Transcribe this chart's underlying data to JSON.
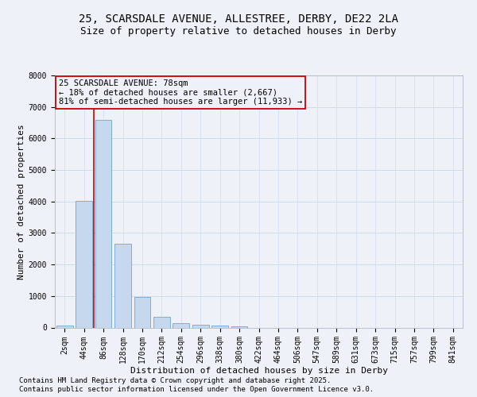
{
  "title_line1": "25, SCARSDALE AVENUE, ALLESTREE, DERBY, DE22 2LA",
  "title_line2": "Size of property relative to detached houses in Derby",
  "xlabel": "Distribution of detached houses by size in Derby",
  "ylabel": "Number of detached properties",
  "categories": [
    "2sqm",
    "44sqm",
    "86sqm",
    "128sqm",
    "170sqm",
    "212sqm",
    "254sqm",
    "296sqm",
    "338sqm",
    "380sqm",
    "422sqm",
    "464sqm",
    "506sqm",
    "547sqm",
    "589sqm",
    "631sqm",
    "673sqm",
    "715sqm",
    "757sqm",
    "799sqm",
    "841sqm"
  ],
  "bar_values": [
    75,
    4020,
    6600,
    2650,
    970,
    350,
    140,
    80,
    55,
    30,
    0,
    0,
    0,
    0,
    0,
    0,
    0,
    0,
    0,
    0,
    0
  ],
  "bar_color": "#c5d8ee",
  "bar_edge_color": "#6fa8d0",
  "grid_color": "#d0dcea",
  "background_color": "#eef2f8",
  "red_line_color": "#cc0000",
  "annotation_text_line1": "25 SCARSDALE AVENUE: 78sqm",
  "annotation_text_line2": "← 18% of detached houses are smaller (2,667)",
  "annotation_text_line3": "81% of semi-detached houses are larger (11,933) →",
  "annotation_box_color": "#cc0000",
  "ylim": [
    0,
    8000
  ],
  "yticks": [
    0,
    1000,
    2000,
    3000,
    4000,
    5000,
    6000,
    7000,
    8000
  ],
  "footer_line1": "Contains HM Land Registry data © Crown copyright and database right 2025.",
  "footer_line2": "Contains public sector information licensed under the Open Government Licence v3.0.",
  "title_fontsize": 10,
  "subtitle_fontsize": 9,
  "axis_label_fontsize": 8,
  "tick_fontsize": 7,
  "annotation_fontsize": 7.5,
  "footer_fontsize": 6.5
}
